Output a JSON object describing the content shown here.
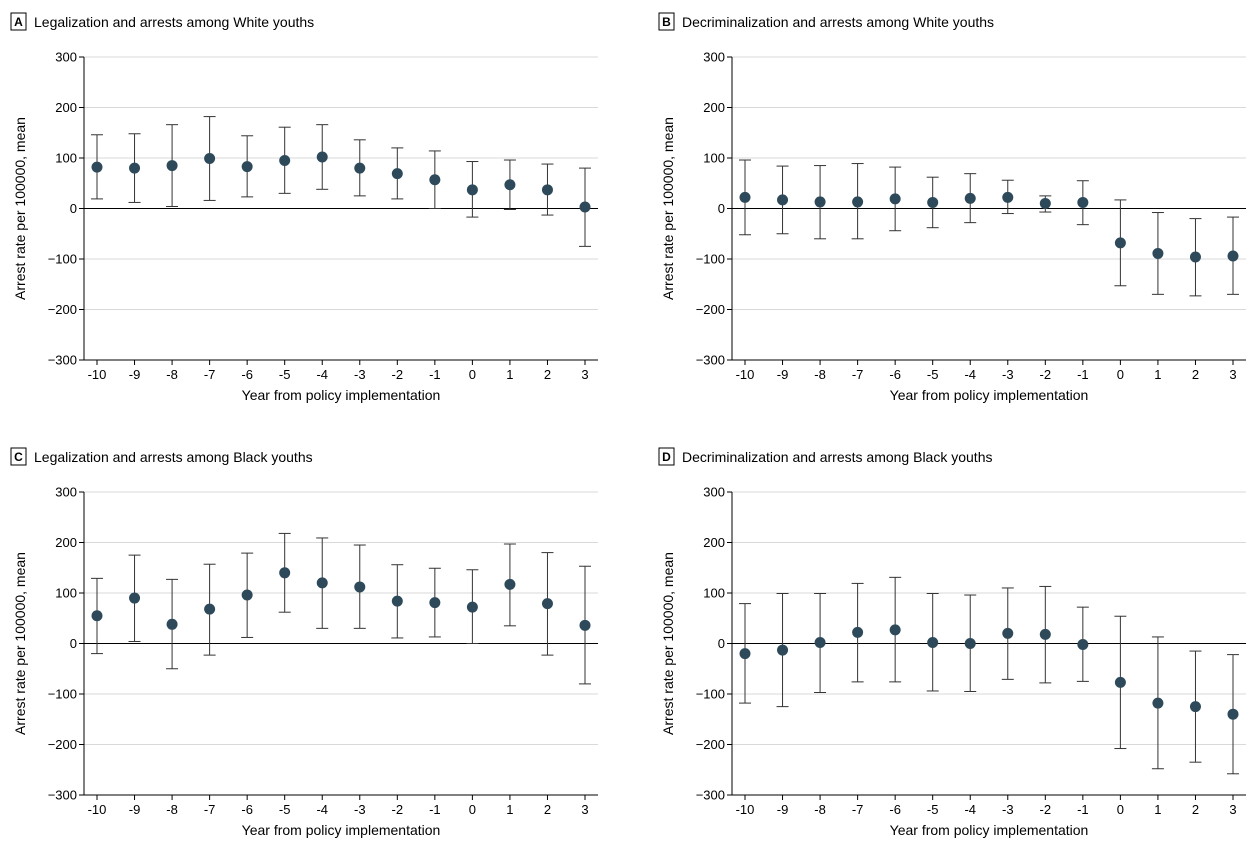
{
  "figure": {
    "panels": [
      {
        "letter": "A",
        "title": "Legalization and arrests among White youths"
      },
      {
        "letter": "B",
        "title": "Decriminalization and arrests among White youths"
      },
      {
        "letter": "C",
        "title": "Legalization and arrests among Black youths"
      },
      {
        "letter": "D",
        "title": "Decriminalization and arrests among Black youths"
      }
    ]
  },
  "chart_data": [
    {
      "type": "scatter",
      "letter": "A",
      "title": "Legalization and arrests among White youths",
      "xlabel": "Year from policy implementation",
      "ylabel": "Arrest rate per 100000, mean",
      "x": [
        -10,
        -9,
        -8,
        -7,
        -6,
        -5,
        -4,
        -3,
        -2,
        -1,
        0,
        1,
        2,
        3
      ],
      "x_tick_labels": [
        "-10",
        "-9",
        "-8",
        "-7",
        "-6",
        "-5",
        "-4",
        "-3",
        "-2",
        "-1",
        "0",
        "1",
        "2",
        "3"
      ],
      "y": [
        82,
        80,
        85,
        99,
        83,
        95,
        102,
        80,
        69,
        57,
        37,
        47,
        37,
        3
      ],
      "ci_low": [
        19,
        12,
        4,
        16,
        23,
        30,
        38,
        25,
        19,
        0,
        -17,
        -2,
        -13,
        -75
      ],
      "ci_high": [
        146,
        148,
        166,
        182,
        144,
        161,
        166,
        136,
        120,
        114,
        93,
        96,
        88,
        80
      ],
      "ylim": [
        -300,
        300
      ],
      "y_ticks": [
        -300,
        -200,
        -100,
        0,
        100,
        200,
        300
      ],
      "y_tick_labels": [
        "−300",
        "−200",
        "−100",
        "0",
        "100",
        "200",
        "300"
      ],
      "grid": true,
      "marker_color": "#2e4a5a"
    },
    {
      "type": "scatter",
      "letter": "B",
      "title": "Decriminalization and arrests among White youths",
      "xlabel": "Year from policy implementation",
      "ylabel": "Arrest rate per 100000, mean",
      "x": [
        -10,
        -9,
        -8,
        -7,
        -6,
        -5,
        -4,
        -3,
        -2,
        -1,
        0,
        1,
        2,
        3
      ],
      "x_tick_labels": [
        "-10",
        "-9",
        "-8",
        "-7",
        "-6",
        "-5",
        "-4",
        "-3",
        "-2",
        "-1",
        "0",
        "1",
        "2",
        "3"
      ],
      "y": [
        22,
        17,
        13,
        13,
        19,
        12,
        20,
        22,
        10,
        12,
        -68,
        -89,
        -96,
        -94
      ],
      "ci_low": [
        -52,
        -50,
        -60,
        -60,
        -44,
        -38,
        -28,
        -10,
        -7,
        -32,
        -153,
        -170,
        -173,
        -170
      ],
      "ci_high": [
        96,
        84,
        85,
        89,
        82,
        62,
        69,
        56,
        25,
        55,
        17,
        -8,
        -20,
        -17
      ],
      "ylim": [
        -300,
        300
      ],
      "y_ticks": [
        -300,
        -200,
        -100,
        0,
        100,
        200,
        300
      ],
      "y_tick_labels": [
        "−300",
        "−200",
        "−100",
        "0",
        "100",
        "200",
        "300"
      ],
      "grid": true,
      "marker_color": "#2e4a5a"
    },
    {
      "type": "scatter",
      "letter": "C",
      "title": "Legalization and arrests among Black youths",
      "xlabel": "Year from policy implementation",
      "ylabel": "Arrest rate per 100000, mean",
      "x": [
        -10,
        -9,
        -8,
        -7,
        -6,
        -5,
        -4,
        -3,
        -2,
        -1,
        0,
        1,
        2,
        3
      ],
      "x_tick_labels": [
        "-10",
        "-9",
        "-8",
        "-7",
        "-6",
        "-5",
        "-4",
        "-3",
        "-2",
        "-1",
        "0",
        "1",
        "2",
        "3"
      ],
      "y": [
        55,
        90,
        38,
        68,
        96,
        140,
        120,
        112,
        84,
        81,
        72,
        117,
        79,
        36
      ],
      "ci_low": [
        -20,
        4,
        -50,
        -23,
        12,
        62,
        30,
        30,
        11,
        13,
        0,
        35,
        -23,
        -80
      ],
      "ci_high": [
        129,
        175,
        127,
        157,
        179,
        218,
        209,
        195,
        156,
        149,
        146,
        197,
        180,
        153
      ],
      "ylim": [
        -300,
        300
      ],
      "y_ticks": [
        -300,
        -200,
        -100,
        0,
        100,
        200,
        300
      ],
      "y_tick_labels": [
        "−300",
        "−200",
        "−100",
        "0",
        "100",
        "200",
        "300"
      ],
      "grid": true,
      "marker_color": "#2e4a5a"
    },
    {
      "type": "scatter",
      "letter": "D",
      "title": "Decriminalization and arrests among Black youths",
      "xlabel": "Year from policy implementation",
      "ylabel": "Arrest rate per 100000, mean",
      "x": [
        -10,
        -9,
        -8,
        -7,
        -6,
        -5,
        -4,
        -3,
        -2,
        -1,
        0,
        1,
        2,
        3
      ],
      "x_tick_labels": [
        "-10",
        "-9",
        "-8",
        "-7",
        "-6",
        "-5",
        "-4",
        "-3",
        "-2",
        "-1",
        "0",
        "1",
        "2",
        "3"
      ],
      "y": [
        -20,
        -13,
        2,
        22,
        27,
        2,
        0,
        20,
        18,
        -2,
        -77,
        -118,
        -125,
        -140
      ],
      "ci_low": [
        -118,
        -125,
        -97,
        -76,
        -76,
        -94,
        -95,
        -71,
        -78,
        -75,
        -208,
        -248,
        -235,
        -258
      ],
      "ci_high": [
        79,
        99,
        99,
        119,
        131,
        99,
        96,
        110,
        113,
        72,
        54,
        13,
        -15,
        -22
      ],
      "ylim": [
        -300,
        300
      ],
      "y_ticks": [
        -300,
        -200,
        -100,
        0,
        100,
        200,
        300
      ],
      "y_tick_labels": [
        "−300",
        "−200",
        "−100",
        "0",
        "100",
        "200",
        "300"
      ],
      "grid": true,
      "marker_color": "#2e4a5a"
    }
  ]
}
